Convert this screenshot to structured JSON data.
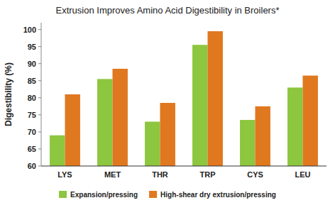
{
  "chart_data": {
    "type": "bar",
    "title": "Extrusion Improves Amino Acid Digestibility in Broilers*",
    "categories": [
      "LYS",
      "MET",
      "THR",
      "TRP",
      "CYS",
      "LEU"
    ],
    "series": [
      {
        "name": "Expansion/pressing",
        "color": "#8DC63F",
        "values": [
          69,
          85.5,
          73,
          95.5,
          73.5,
          83
        ]
      },
      {
        "name": "High-shear dry extrusion/pressing",
        "color": "#E07820",
        "values": [
          81,
          88.5,
          78.5,
          99.5,
          77.5,
          86.5
        ]
      }
    ],
    "ylabel": "Digestibility (%)",
    "ylim": [
      60,
      102
    ],
    "yticks": [
      60,
      65,
      70,
      75,
      80,
      85,
      90,
      95,
      100
    ],
    "grid": false,
    "legend": "bottom"
  }
}
